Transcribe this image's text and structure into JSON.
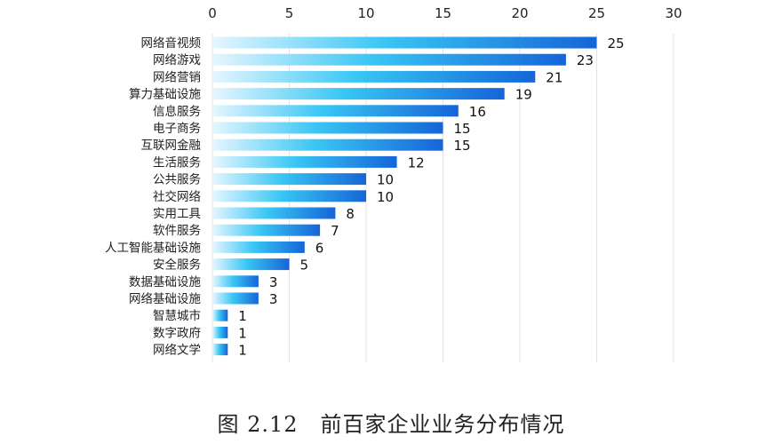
{
  "chart_data": {
    "type": "bar",
    "orientation": "horizontal",
    "title": "",
    "xlabel": "",
    "ylabel": "",
    "xlim": [
      0,
      30
    ],
    "x_ticks": [
      0,
      5,
      10,
      15,
      20,
      25,
      30
    ],
    "x_axis_position": "top",
    "grid": true,
    "categories": [
      "网络音视频",
      "网络游戏",
      "网络营销",
      "算力基础设施",
      "信息服务",
      "电子商务",
      "互联网金融",
      "生活服务",
      "公共服务",
      "社交网络",
      "实用工具",
      "软件服务",
      "人工智能基础设施",
      "安全服务",
      "数据基础设施",
      "网络基础设施",
      "智慧城市",
      "数字政府",
      "网络文学"
    ],
    "values": [
      25,
      23,
      21,
      19,
      16,
      15,
      15,
      12,
      10,
      10,
      8,
      7,
      6,
      5,
      3,
      3,
      1,
      1,
      1
    ],
    "colors": {
      "bar_start": "#e6f6ff",
      "bar_mid": "#38c6f4",
      "bar_end": "#1565d8",
      "grid": "#e3e3e3"
    }
  },
  "caption": "图 2.12　前百家企业业务分布情况"
}
